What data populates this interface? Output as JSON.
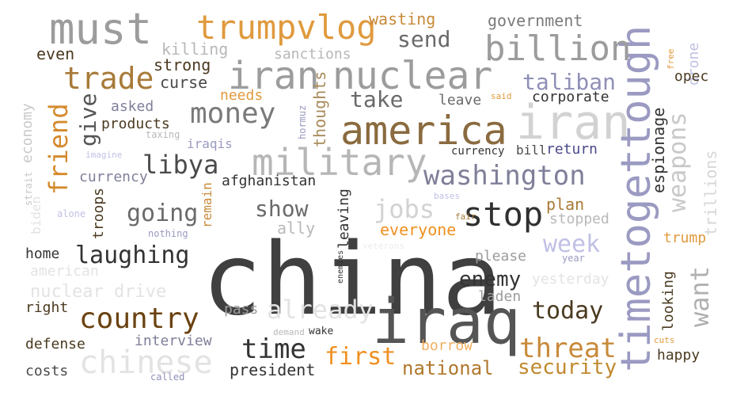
{
  "words": [
    {
      "text": "china",
      "color": "#404040"
    },
    {
      "text": "iraq",
      "color": "#555555"
    },
    {
      "text": "america",
      "color": "#8a6a3f"
    },
    {
      "text": "iran",
      "color": "#d2d2d2"
    },
    {
      "text": "timetogettough",
      "color": "#9a9ac2"
    },
    {
      "text": "must",
      "color": "#9c9c9c"
    },
    {
      "text": "nuclear",
      "color": "#9c9c9c"
    },
    {
      "text": "iran",
      "color": "#9c9c9c"
    },
    {
      "text": "military",
      "color": "#b6b6b6"
    },
    {
      "text": "trumpvlog",
      "color": "#e09a3e"
    },
    {
      "text": "billion",
      "color": "#9c9c9c"
    },
    {
      "text": "trade",
      "color": "#a87a38"
    },
    {
      "text": "stop",
      "color": "#303030"
    },
    {
      "text": "washington",
      "color": "#7f7f9a"
    },
    {
      "text": "money",
      "color": "#7a7a7a"
    },
    {
      "text": "libya",
      "color": "#4a4a4a"
    },
    {
      "text": "friend",
      "color": "#d48a2c"
    },
    {
      "text": "country",
      "color": "#6a4210"
    },
    {
      "text": "chinese",
      "color": "#e3e3e3"
    },
    {
      "text": "threat",
      "color": "#c88a3a"
    },
    {
      "text": "already",
      "color": "#e3e3e3"
    },
    {
      "text": "time",
      "color": "#333333"
    },
    {
      "text": "first",
      "color": "#f09020"
    },
    {
      "text": "weapons",
      "color": "#c8c8c8"
    },
    {
      "text": "want",
      "color": "#b0b0b0"
    },
    {
      "text": "going",
      "color": "#6a6a6a"
    },
    {
      "text": "show",
      "color": "#6a6a6a"
    },
    {
      "text": "jobs",
      "color": "#d2d2d2"
    },
    {
      "text": "week",
      "color": "#c0c0e6"
    },
    {
      "text": "laughing",
      "color": "#333333"
    },
    {
      "text": "today",
      "color": "#4a3a20"
    },
    {
      "text": "taliban",
      "color": "#8f8fb8"
    },
    {
      "text": "take",
      "color": "#6a6a6a"
    },
    {
      "text": "send",
      "color": "#6a6a6a"
    },
    {
      "text": "give",
      "color": "#555555"
    },
    {
      "text": "enemy",
      "color": "#333333"
    },
    {
      "text": "security",
      "color": "#c0892e"
    },
    {
      "text": "national",
      "color": "#b0782c"
    },
    {
      "text": "president",
      "color": "#333333"
    },
    {
      "text": "everyone",
      "color": "#f09020"
    },
    {
      "text": "trillions",
      "color": "#d6d6d6"
    },
    {
      "text": "drone",
      "color": "#c0c0e6"
    },
    {
      "text": "government",
      "color": "#7a7a7a"
    },
    {
      "text": "wasting",
      "color": "#c88a3a"
    },
    {
      "text": "sanctions",
      "color": "#b8b8b8"
    },
    {
      "text": "killing",
      "color": "#b8b8b8"
    },
    {
      "text": "strong",
      "color": "#4a3a20"
    },
    {
      "text": "curse",
      "color": "#4a4a4a"
    },
    {
      "text": "even",
      "color": "#4a3a20"
    },
    {
      "text": "needs",
      "color": "#e09a3e"
    },
    {
      "text": "thoughts",
      "color": "#a88a5a"
    },
    {
      "text": "leave",
      "color": "#6a6a6a"
    },
    {
      "text": "corporate",
      "color": "#333333"
    },
    {
      "text": "espionage",
      "color": "#333333"
    },
    {
      "text": "opec",
      "color": "#4a3a20"
    },
    {
      "text": "products",
      "color": "#4a3a20"
    },
    {
      "text": "asked",
      "color": "#7f7f9a"
    },
    {
      "text": "economy",
      "color": "#c8c8c8"
    },
    {
      "text": "iraqis",
      "color": "#9a9ac2"
    },
    {
      "text": "currency",
      "color": "#7f7f9a"
    },
    {
      "text": "afghanistan",
      "color": "#333333"
    },
    {
      "text": "troops",
      "color": "#4a3a20"
    },
    {
      "text": "remain",
      "color": "#c88a3a"
    },
    {
      "text": "leaving",
      "color": "#333333"
    },
    {
      "text": "ally",
      "color": "#b8b8b8"
    },
    {
      "text": "plan",
      "color": "#a87a38"
    },
    {
      "text": "stopped",
      "color": "#b8b8b8"
    },
    {
      "text": "trump",
      "color": "#e09a3e"
    },
    {
      "text": "return",
      "color": "#4a4a8a"
    },
    {
      "text": "currency",
      "color": "#333333"
    },
    {
      "text": "bill",
      "color": "#4a4a4a"
    },
    {
      "text": "please",
      "color": "#9c9c9c"
    },
    {
      "text": "yesterday",
      "color": "#e3e3e3"
    },
    {
      "text": "looking",
      "color": "#4a3a20"
    },
    {
      "text": "laden",
      "color": "#9c9c9c"
    },
    {
      "text": "home",
      "color": "#333333"
    },
    {
      "text": "american",
      "color": "#e3e3e3"
    },
    {
      "text": "nuclear drive",
      "color": "#e3e3e3"
    },
    {
      "text": "right",
      "color": "#4a3a20"
    },
    {
      "text": "pass",
      "color": "#9c9c9c"
    },
    {
      "text": "defense",
      "color": "#4a3a20"
    },
    {
      "text": "interview",
      "color": "#7f7f9a"
    },
    {
      "text": "costs",
      "color": "#4a4a4a"
    },
    {
      "text": "borrow",
      "color": "#f0b060"
    },
    {
      "text": "happy",
      "color": "#4a3a20"
    },
    {
      "text": "biden",
      "color": "#e3e3e3"
    },
    {
      "text": "strait",
      "color": "#c8c8c8"
    },
    {
      "text": "alone",
      "color": "#c0c0e6"
    },
    {
      "text": "nothing",
      "color": "#9a9ac2"
    },
    {
      "text": "imagine",
      "color": "#c0c0e6"
    },
    {
      "text": "taxing",
      "color": "#b8b8b8"
    },
    {
      "text": "hormuz",
      "color": "#9a9ac2"
    },
    {
      "text": "said",
      "color": "#e09a3e"
    },
    {
      "text": "free",
      "color": "#e09a3e"
    },
    {
      "text": "bases",
      "color": "#c0c0e6"
    },
    {
      "text": "fair",
      "color": "#a87a38"
    },
    {
      "text": "veterans",
      "color": "#ececec"
    },
    {
      "text": "enemies",
      "color": "#333333"
    },
    {
      "text": "demand",
      "color": "#b8b8b8"
    },
    {
      "text": "wake",
      "color": "#333333"
    },
    {
      "text": "year",
      "color": "#9a9ac2"
    },
    {
      "text": "cuts",
      "color": "#e09a3e"
    },
    {
      "text": "called",
      "color": "#8f8fb8"
    }
  ]
}
